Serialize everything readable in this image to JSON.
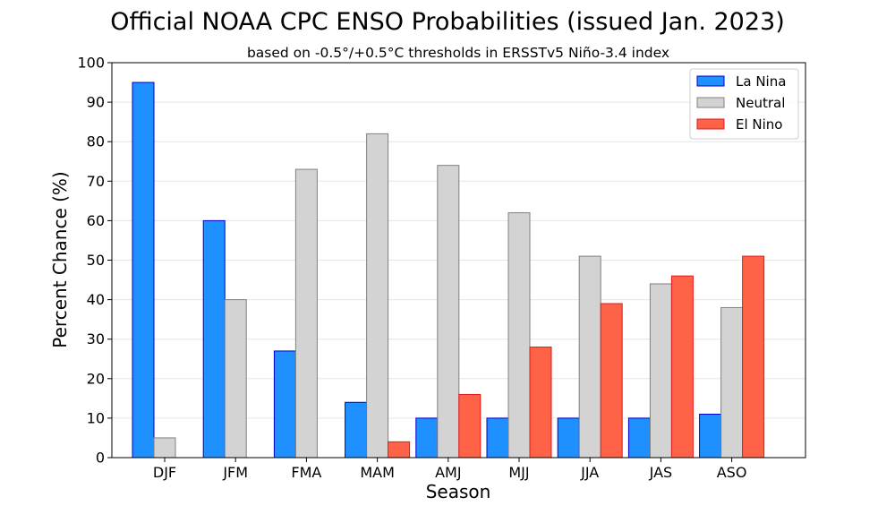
{
  "chart_data": {
    "type": "bar",
    "title": "Official NOAA CPC ENSO Probabilities (issued Jan. 2023)",
    "subtitle": "based on -0.5°/+0.5°C thresholds in ERSSTv5 Niño-3.4 index",
    "xlabel": "Season",
    "ylabel": "Percent Chance (%)",
    "ylim": [
      0,
      100
    ],
    "yticks": [
      0,
      10,
      20,
      30,
      40,
      50,
      60,
      70,
      80,
      90,
      100
    ],
    "grid": true,
    "legend_position": "top-right",
    "categories": [
      "DJF",
      "JFM",
      "FMA",
      "MAM",
      "AMJ",
      "MJJ",
      "JJA",
      "JAS",
      "ASO"
    ],
    "series": [
      {
        "name": "La Nina",
        "fill": "#1e90ff",
        "stroke": "#0000cd",
        "values": [
          95,
          60,
          27,
          14,
          10,
          10,
          10,
          10,
          11
        ]
      },
      {
        "name": "Neutral",
        "fill": "#d3d3d3",
        "stroke": "#808080",
        "values": [
          5,
          40,
          73,
          82,
          74,
          62,
          51,
          44,
          38
        ]
      },
      {
        "name": "El Nino",
        "fill": "#ff6347",
        "stroke": "#e31a1c",
        "values": [
          0,
          0,
          0,
          4,
          16,
          28,
          39,
          46,
          51
        ]
      }
    ]
  }
}
